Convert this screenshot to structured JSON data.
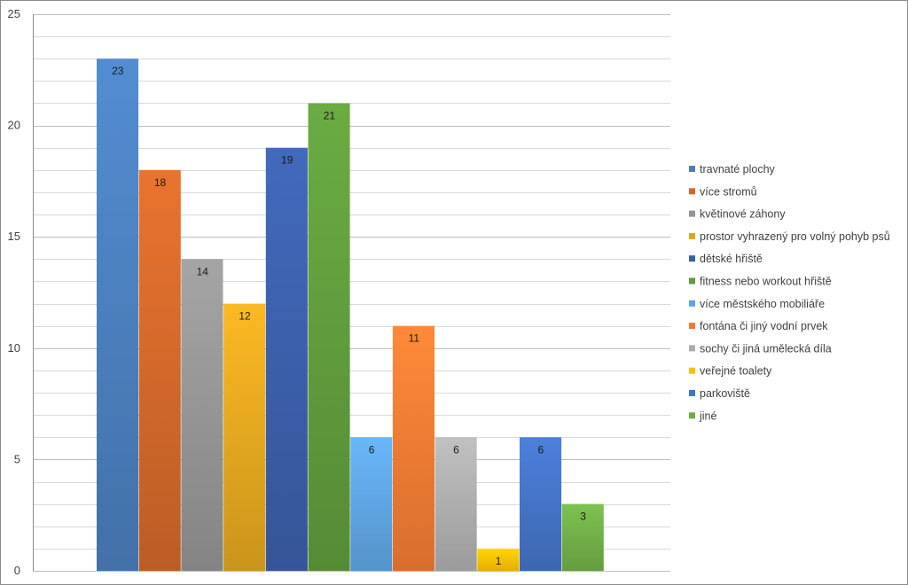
{
  "chart_data": {
    "type": "bar",
    "title": "",
    "xlabel": "",
    "ylabel": "",
    "ylim": [
      0,
      25
    ],
    "yticks": [
      0,
      5,
      10,
      15,
      20,
      25
    ],
    "grid": true,
    "legend_position": "right",
    "data_labels": true,
    "series": [
      {
        "name": "travnaté plochy",
        "value": 23,
        "color": "#4a7ebb"
      },
      {
        "name": "více stromů",
        "value": 18,
        "color": "#d0672a"
      },
      {
        "name": "květinové záhony",
        "value": 14,
        "color": "#939393"
      },
      {
        "name": "prostor vyhrazený pro volný pohyb psů",
        "value": 12,
        "color": "#e0a51f"
      },
      {
        "name": "dětské hřiště",
        "value": 19,
        "color": "#3b5ea8"
      },
      {
        "name": "fitness nebo workout hřiště",
        "value": 21,
        "color": "#5f9a3c"
      },
      {
        "name": "více městského mobiliáře",
        "value": 6,
        "color": "#5ea3e0"
      },
      {
        "name": "fontána či jiný vodní prvek",
        "value": 11,
        "color": "#f07a33"
      },
      {
        "name": "sochy či jiná umělecká díla",
        "value": 6,
        "color": "#acacac"
      },
      {
        "name": "veřejné toalety",
        "value": 1,
        "color": "#ffc000"
      },
      {
        "name": "parkoviště",
        "value": 6,
        "color": "#4472c4"
      },
      {
        "name": "jiné",
        "value": 3,
        "color": "#70ad47"
      }
    ]
  }
}
